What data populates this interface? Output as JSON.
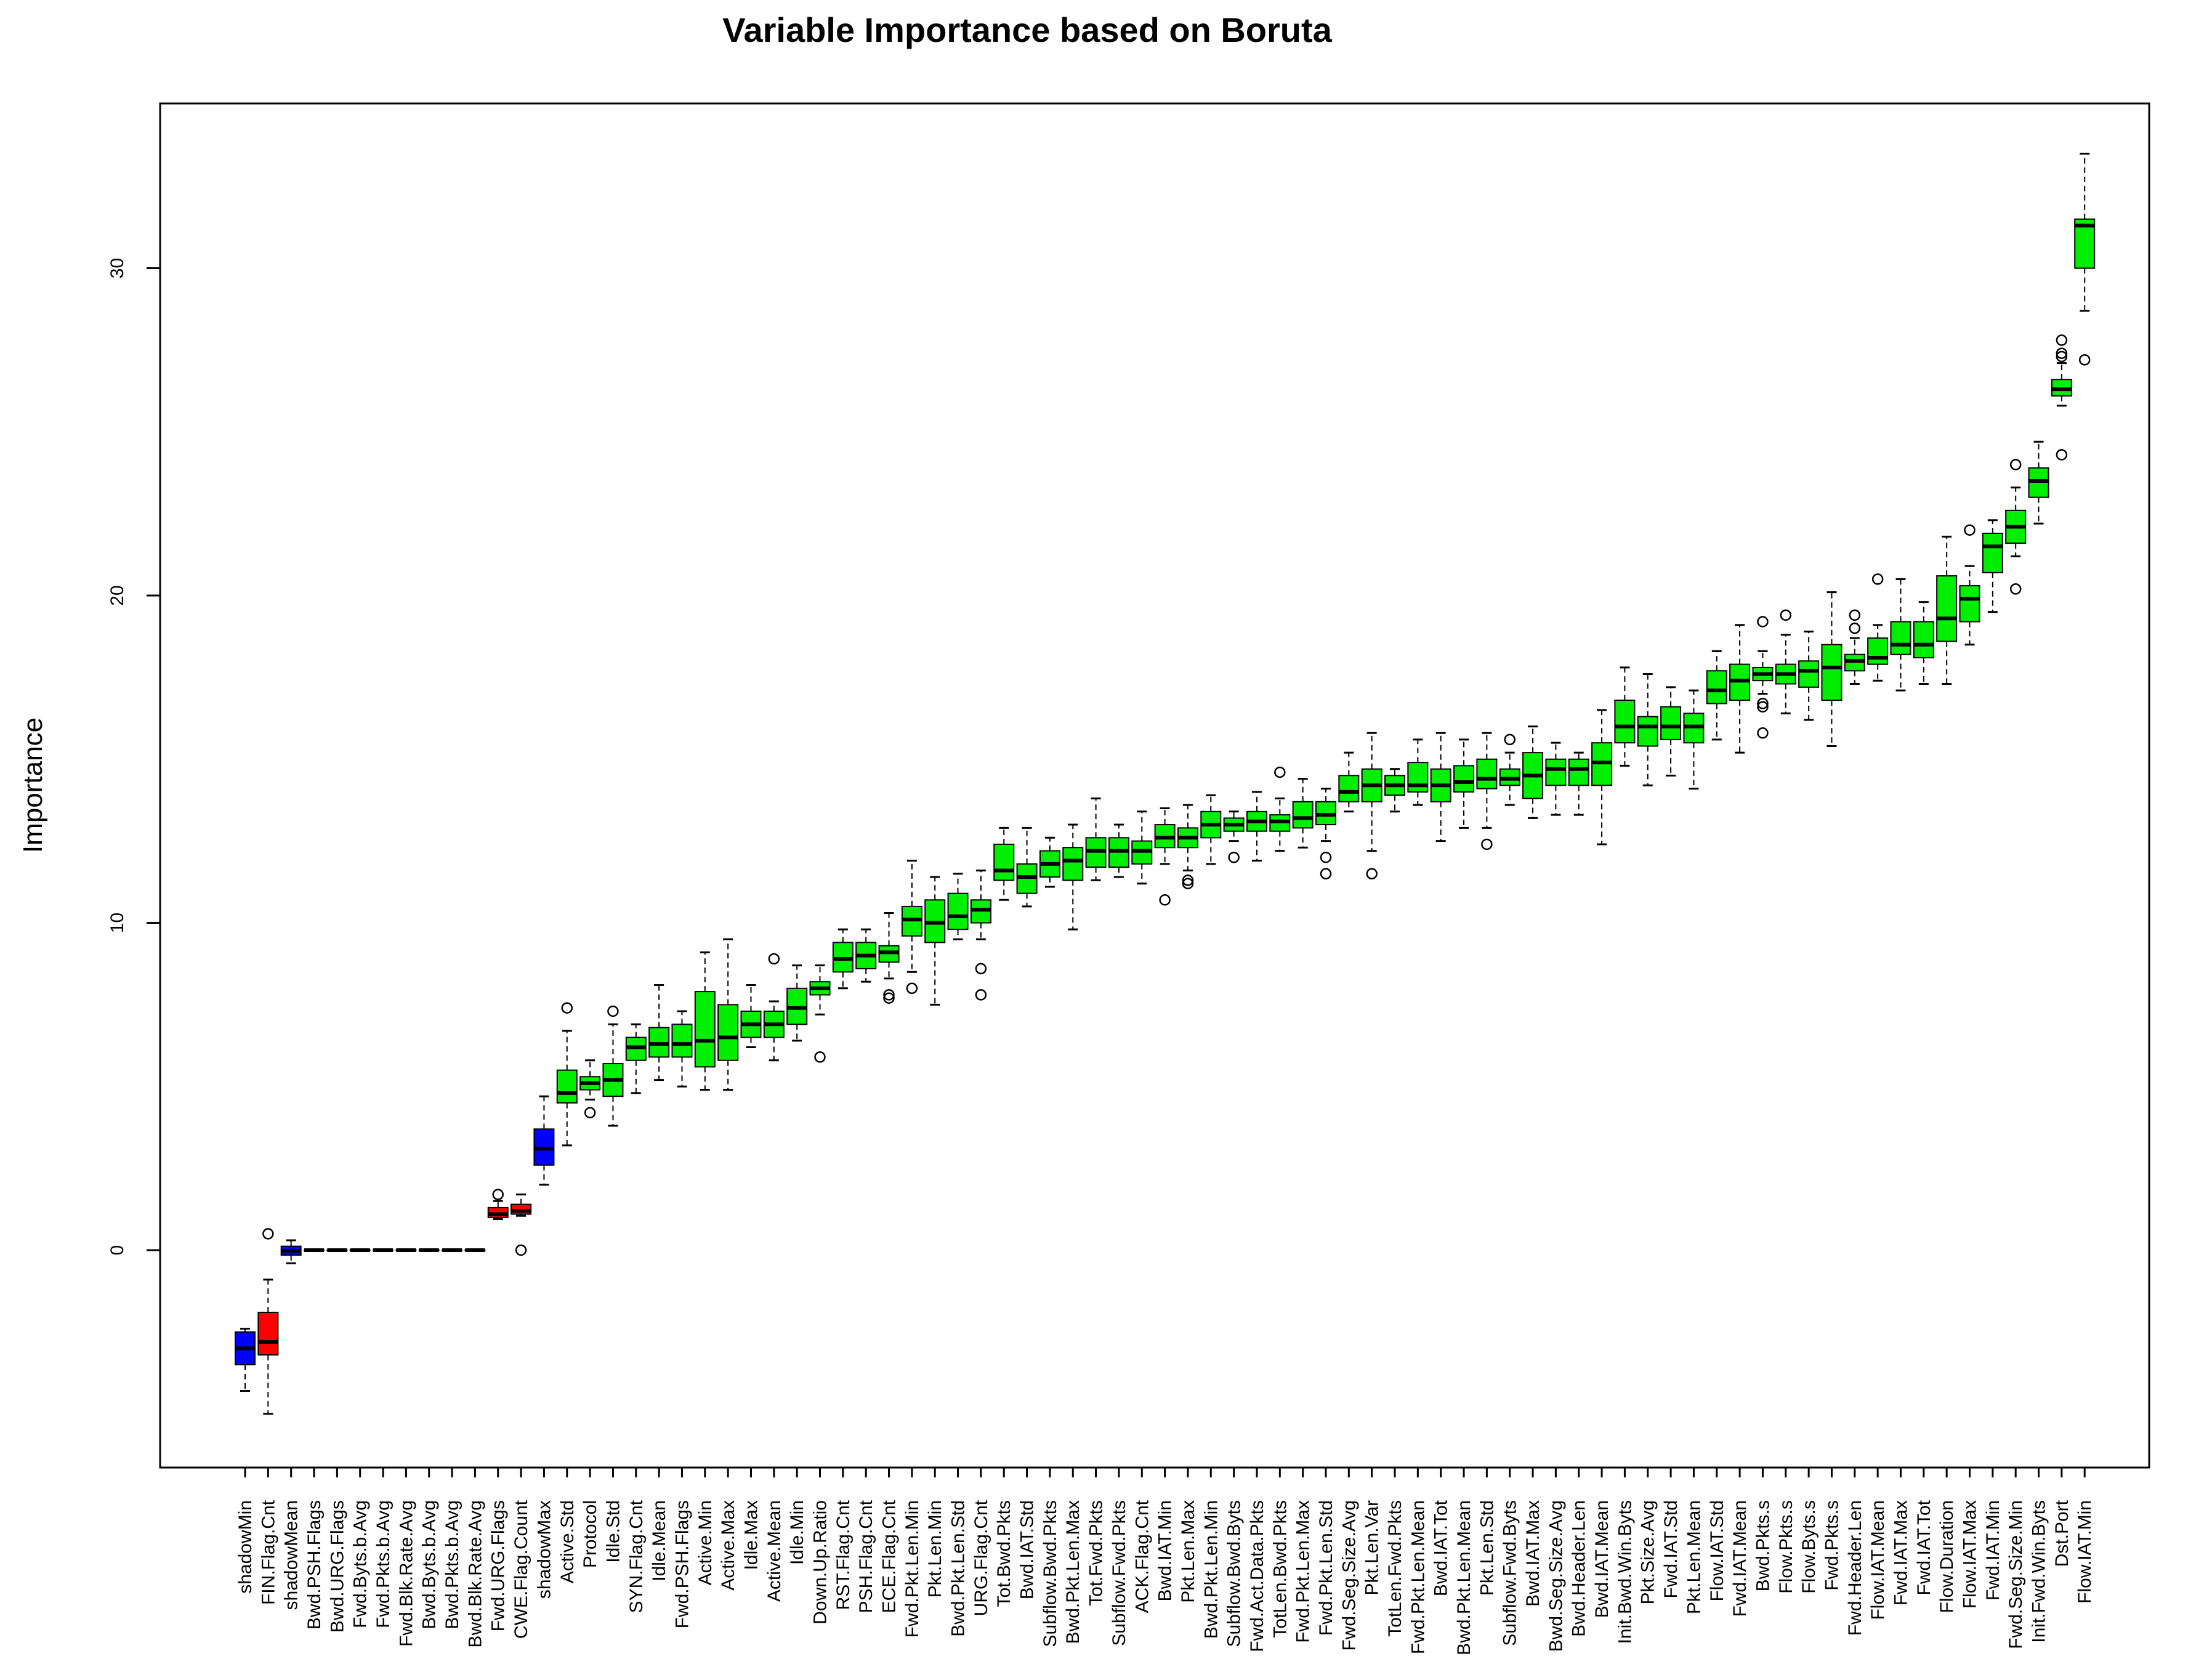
{
  "chart_data": {
    "type": "boxplot",
    "title": "Variable Importance based on Boruta",
    "xlabel": "",
    "ylabel": "Importance",
    "ylim": [
      -6.6,
      35
    ],
    "yticks": [
      0,
      10,
      20,
      30
    ],
    "grid": false,
    "legend": "none",
    "colors": {
      "shadow": "#0000ff",
      "rejected": "#ff0000",
      "confirmed": "#00ee00"
    },
    "boxes": [
      {
        "label": "shadowMin",
        "status": "shadow",
        "whisker_low": -4.3,
        "q1": -3.5,
        "median": -3.0,
        "q3": -2.5,
        "whisker_high": -2.4,
        "outliers": []
      },
      {
        "label": "FIN.Flag.Cnt",
        "status": "rejected",
        "whisker_low": -5.0,
        "q1": -3.2,
        "median": -2.8,
        "q3": -1.9,
        "whisker_high": -0.9,
        "outliers": [
          0.5
        ]
      },
      {
        "label": "shadowMean",
        "status": "shadow",
        "whisker_low": -0.4,
        "q1": -0.15,
        "median": -0.02,
        "q3": 0.12,
        "whisker_high": 0.3,
        "outliers": []
      },
      {
        "label": "Bwd.PSH.Flags",
        "status": "rejected",
        "whisker_low": 0,
        "q1": 0,
        "median": 0,
        "q3": 0,
        "whisker_high": 0,
        "outliers": []
      },
      {
        "label": "Bwd.URG.Flags",
        "status": "rejected",
        "whisker_low": 0,
        "q1": 0,
        "median": 0,
        "q3": 0,
        "whisker_high": 0,
        "outliers": []
      },
      {
        "label": "Fwd.Byts.b.Avg",
        "status": "rejected",
        "whisker_low": 0,
        "q1": 0,
        "median": 0,
        "q3": 0,
        "whisker_high": 0,
        "outliers": []
      },
      {
        "label": "Fwd.Pkts.b.Avg",
        "status": "rejected",
        "whisker_low": 0,
        "q1": 0,
        "median": 0,
        "q3": 0,
        "whisker_high": 0,
        "outliers": []
      },
      {
        "label": "Fwd.Blk.Rate.Avg",
        "status": "rejected",
        "whisker_low": 0,
        "q1": 0,
        "median": 0,
        "q3": 0,
        "whisker_high": 0,
        "outliers": []
      },
      {
        "label": "Bwd.Byts.b.Avg",
        "status": "rejected",
        "whisker_low": 0,
        "q1": 0,
        "median": 0,
        "q3": 0,
        "whisker_high": 0,
        "outliers": []
      },
      {
        "label": "Bwd.Pkts.b.Avg",
        "status": "rejected",
        "whisker_low": 0,
        "q1": 0,
        "median": 0,
        "q3": 0,
        "whisker_high": 0,
        "outliers": []
      },
      {
        "label": "Bwd.Blk.Rate.Avg",
        "status": "rejected",
        "whisker_low": 0,
        "q1": 0,
        "median": 0,
        "q3": 0,
        "whisker_high": 0,
        "outliers": []
      },
      {
        "label": "Fwd.URG.Flags",
        "status": "rejected",
        "whisker_low": 0.95,
        "q1": 1.0,
        "median": 1.1,
        "q3": 1.3,
        "whisker_high": 1.5,
        "outliers": [
          1.7
        ]
      },
      {
        "label": "CWE.Flag.Count",
        "status": "rejected",
        "whisker_low": 1.05,
        "q1": 1.1,
        "median": 1.2,
        "q3": 1.4,
        "whisker_high": 1.7,
        "outliers": [
          0.0
        ]
      },
      {
        "label": "shadowMax",
        "status": "shadow",
        "whisker_low": 2.0,
        "q1": 2.6,
        "median": 3.1,
        "q3": 3.7,
        "whisker_high": 4.7,
        "outliers": []
      },
      {
        "label": "Active.Std",
        "status": "confirmed",
        "whisker_low": 3.2,
        "q1": 4.5,
        "median": 4.8,
        "q3": 5.5,
        "whisker_high": 6.7,
        "outliers": [
          7.4
        ]
      },
      {
        "label": "Protocol",
        "status": "confirmed",
        "whisker_low": 4.6,
        "q1": 4.9,
        "median": 5.1,
        "q3": 5.3,
        "whisker_high": 5.8,
        "outliers": [
          4.2
        ]
      },
      {
        "label": "Idle.Std",
        "status": "confirmed",
        "whisker_low": 3.8,
        "q1": 4.7,
        "median": 5.2,
        "q3": 5.7,
        "whisker_high": 6.9,
        "outliers": [
          7.3
        ]
      },
      {
        "label": "SYN.Flag.Cnt",
        "status": "confirmed",
        "whisker_low": 4.8,
        "q1": 5.8,
        "median": 6.2,
        "q3": 6.5,
        "whisker_high": 6.9,
        "outliers": []
      },
      {
        "label": "Idle.Mean",
        "status": "confirmed",
        "whisker_low": 5.2,
        "q1": 5.9,
        "median": 6.3,
        "q3": 6.8,
        "whisker_high": 8.1,
        "outliers": []
      },
      {
        "label": "Fwd.PSH.Flags",
        "status": "confirmed",
        "whisker_low": 5.0,
        "q1": 5.9,
        "median": 6.3,
        "q3": 6.9,
        "whisker_high": 7.3,
        "outliers": []
      },
      {
        "label": "Active.Min",
        "status": "confirmed",
        "whisker_low": 4.9,
        "q1": 5.6,
        "median": 6.4,
        "q3": 7.9,
        "whisker_high": 9.1,
        "outliers": []
      },
      {
        "label": "Active.Max",
        "status": "confirmed",
        "whisker_low": 4.9,
        "q1": 5.8,
        "median": 6.5,
        "q3": 7.5,
        "whisker_high": 9.5,
        "outliers": []
      },
      {
        "label": "Idle.Max",
        "status": "confirmed",
        "whisker_low": 6.2,
        "q1": 6.5,
        "median": 6.9,
        "q3": 7.3,
        "whisker_high": 8.1,
        "outliers": []
      },
      {
        "label": "Active.Mean",
        "status": "confirmed",
        "whisker_low": 5.8,
        "q1": 6.5,
        "median": 6.9,
        "q3": 7.3,
        "whisker_high": 7.6,
        "outliers": [
          8.9
        ]
      },
      {
        "label": "Idle.Min",
        "status": "confirmed",
        "whisker_low": 6.4,
        "q1": 6.9,
        "median": 7.4,
        "q3": 8.0,
        "whisker_high": 8.7,
        "outliers": []
      },
      {
        "label": "Down.Up.Ratio",
        "status": "confirmed",
        "whisker_low": 7.2,
        "q1": 7.8,
        "median": 8.0,
        "q3": 8.2,
        "whisker_high": 8.7,
        "outliers": [
          5.9
        ]
      },
      {
        "label": "RST.Flag.Cnt",
        "status": "confirmed",
        "whisker_low": 8.0,
        "q1": 8.5,
        "median": 8.9,
        "q3": 9.4,
        "whisker_high": 9.8,
        "outliers": []
      },
      {
        "label": "PSH.Flag.Cnt",
        "status": "confirmed",
        "whisker_low": 8.2,
        "q1": 8.6,
        "median": 9.0,
        "q3": 9.4,
        "whisker_high": 9.8,
        "outliers": []
      },
      {
        "label": "ECE.Flag.Cnt",
        "status": "confirmed",
        "whisker_low": 8.3,
        "q1": 8.8,
        "median": 9.1,
        "q3": 9.3,
        "whisker_high": 10.3,
        "outliers": [
          7.8,
          7.7
        ]
      },
      {
        "label": "Fwd.Pkt.Len.Min",
        "status": "confirmed",
        "whisker_low": 8.5,
        "q1": 9.6,
        "median": 10.1,
        "q3": 10.5,
        "whisker_high": 11.9,
        "outliers": [
          8.0
        ]
      },
      {
        "label": "Pkt.Len.Min",
        "status": "confirmed",
        "whisker_low": 7.5,
        "q1": 9.4,
        "median": 10.0,
        "q3": 10.7,
        "whisker_high": 11.4,
        "outliers": []
      },
      {
        "label": "Bwd.Pkt.Len.Std",
        "status": "confirmed",
        "whisker_low": 9.5,
        "q1": 9.8,
        "median": 10.2,
        "q3": 10.9,
        "whisker_high": 11.5,
        "outliers": []
      },
      {
        "label": "URG.Flag.Cnt",
        "status": "confirmed",
        "whisker_low": 9.5,
        "q1": 10.0,
        "median": 10.4,
        "q3": 10.7,
        "whisker_high": 11.6,
        "outliers": [
          8.6,
          7.8
        ]
      },
      {
        "label": "Tot.Bwd.Pkts",
        "status": "confirmed",
        "whisker_low": 10.7,
        "q1": 11.3,
        "median": 11.6,
        "q3": 12.4,
        "whisker_high": 12.9,
        "outliers": []
      },
      {
        "label": "Bwd.IAT.Std",
        "status": "confirmed",
        "whisker_low": 10.5,
        "q1": 10.9,
        "median": 11.4,
        "q3": 11.8,
        "whisker_high": 12.9,
        "outliers": []
      },
      {
        "label": "Subflow.Bwd.Pkts",
        "status": "confirmed",
        "whisker_low": 11.1,
        "q1": 11.4,
        "median": 11.8,
        "q3": 12.2,
        "whisker_high": 12.6,
        "outliers": []
      },
      {
        "label": "Bwd.Pkt.Len.Max",
        "status": "confirmed",
        "whisker_low": 9.8,
        "q1": 11.3,
        "median": 11.9,
        "q3": 12.3,
        "whisker_high": 13.0,
        "outliers": []
      },
      {
        "label": "Tot.Fwd.Pkts",
        "status": "confirmed",
        "whisker_low": 11.3,
        "q1": 11.7,
        "median": 12.2,
        "q3": 12.6,
        "whisker_high": 13.8,
        "outliers": []
      },
      {
        "label": "Subflow.Fwd.Pkts",
        "status": "confirmed",
        "whisker_low": 11.4,
        "q1": 11.7,
        "median": 12.2,
        "q3": 12.6,
        "whisker_high": 13.0,
        "outliers": []
      },
      {
        "label": "ACK.Flag.Cnt",
        "status": "confirmed",
        "whisker_low": 11.2,
        "q1": 11.8,
        "median": 12.2,
        "q3": 12.5,
        "whisker_high": 13.4,
        "outliers": []
      },
      {
        "label": "Bwd.IAT.Min",
        "status": "confirmed",
        "whisker_low": 11.8,
        "q1": 12.3,
        "median": 12.6,
        "q3": 13.0,
        "whisker_high": 13.5,
        "outliers": [
          10.7
        ]
      },
      {
        "label": "Pkt.Len.Max",
        "status": "confirmed",
        "whisker_low": 11.6,
        "q1": 12.3,
        "median": 12.6,
        "q3": 12.9,
        "whisker_high": 13.6,
        "outliers": [
          11.2,
          11.3
        ]
      },
      {
        "label": "Bwd.Pkt.Len.Min",
        "status": "confirmed",
        "whisker_low": 11.8,
        "q1": 12.6,
        "median": 13.0,
        "q3": 13.4,
        "whisker_high": 13.9,
        "outliers": []
      },
      {
        "label": "Subflow.Bwd.Byts",
        "status": "confirmed",
        "whisker_low": 12.5,
        "q1": 12.8,
        "median": 13.0,
        "q3": 13.2,
        "whisker_high": 13.4,
        "outliers": [
          12.0
        ]
      },
      {
        "label": "Fwd.Act.Data.Pkts",
        "status": "confirmed",
        "whisker_low": 11.9,
        "q1": 12.8,
        "median": 13.1,
        "q3": 13.4,
        "whisker_high": 14.0,
        "outliers": []
      },
      {
        "label": "TotLen.Bwd.Pkts",
        "status": "confirmed",
        "whisker_low": 12.2,
        "q1": 12.8,
        "median": 13.1,
        "q3": 13.3,
        "whisker_high": 13.8,
        "outliers": [
          14.6
        ]
      },
      {
        "label": "Fwd.Pkt.Len.Max",
        "status": "confirmed",
        "whisker_low": 12.3,
        "q1": 12.9,
        "median": 13.2,
        "q3": 13.7,
        "whisker_high": 14.4,
        "outliers": []
      },
      {
        "label": "Fwd.Pkt.Len.Std",
        "status": "confirmed",
        "whisker_low": 12.5,
        "q1": 13.0,
        "median": 13.3,
        "q3": 13.7,
        "whisker_high": 14.1,
        "outliers": [
          12.0,
          11.5
        ]
      },
      {
        "label": "Fwd.Seg.Size.Avg",
        "status": "confirmed",
        "whisker_low": 13.4,
        "q1": 13.7,
        "median": 14.0,
        "q3": 14.5,
        "whisker_high": 15.2,
        "outliers": []
      },
      {
        "label": "Pkt.Len.Var",
        "status": "confirmed",
        "whisker_low": 12.2,
        "q1": 13.7,
        "median": 14.2,
        "q3": 14.7,
        "whisker_high": 15.8,
        "outliers": [
          11.5
        ]
      },
      {
        "label": "TotLen.Fwd.Pkts",
        "status": "confirmed",
        "whisker_low": 13.4,
        "q1": 13.9,
        "median": 14.2,
        "q3": 14.5,
        "whisker_high": 14.7,
        "outliers": []
      },
      {
        "label": "Fwd.Pkt.Len.Mean",
        "status": "confirmed",
        "whisker_low": 13.6,
        "q1": 14.0,
        "median": 14.2,
        "q3": 14.9,
        "whisker_high": 15.6,
        "outliers": []
      },
      {
        "label": "Bwd.IAT.Tot",
        "status": "confirmed",
        "whisker_low": 12.5,
        "q1": 13.7,
        "median": 14.2,
        "q3": 14.7,
        "whisker_high": 15.8,
        "outliers": []
      },
      {
        "label": "Bwd.Pkt.Len.Mean",
        "status": "confirmed",
        "whisker_low": 12.9,
        "q1": 14.0,
        "median": 14.3,
        "q3": 14.8,
        "whisker_high": 15.6,
        "outliers": []
      },
      {
        "label": "Pkt.Len.Std",
        "status": "confirmed",
        "whisker_low": 12.9,
        "q1": 14.1,
        "median": 14.4,
        "q3": 15.0,
        "whisker_high": 15.8,
        "outliers": [
          12.4
        ]
      },
      {
        "label": "Subflow.Fwd.Byts",
        "status": "confirmed",
        "whisker_low": 13.6,
        "q1": 14.2,
        "median": 14.4,
        "q3": 14.7,
        "whisker_high": 15.2,
        "outliers": [
          15.6
        ]
      },
      {
        "label": "Bwd.IAT.Max",
        "status": "confirmed",
        "whisker_low": 13.2,
        "q1": 13.8,
        "median": 14.5,
        "q3": 15.2,
        "whisker_high": 16.0,
        "outliers": []
      },
      {
        "label": "Bwd.Seg.Size.Avg",
        "status": "confirmed",
        "whisker_low": 13.3,
        "q1": 14.2,
        "median": 14.7,
        "q3": 15.0,
        "whisker_high": 15.5,
        "outliers": []
      },
      {
        "label": "Bwd.Header.Len",
        "status": "confirmed",
        "whisker_low": 13.3,
        "q1": 14.2,
        "median": 14.7,
        "q3": 15.0,
        "whisker_high": 15.2,
        "outliers": []
      },
      {
        "label": "Bwd.IAT.Mean",
        "status": "confirmed",
        "whisker_low": 12.4,
        "q1": 14.2,
        "median": 14.9,
        "q3": 15.5,
        "whisker_high": 16.5,
        "outliers": []
      },
      {
        "label": "Init.Bwd.Win.Byts",
        "status": "confirmed",
        "whisker_low": 14.8,
        "q1": 15.5,
        "median": 16.0,
        "q3": 16.8,
        "whisker_high": 17.8,
        "outliers": []
      },
      {
        "label": "Pkt.Size.Avg",
        "status": "confirmed",
        "whisker_low": 14.2,
        "q1": 15.4,
        "median": 16.0,
        "q3": 16.3,
        "whisker_high": 17.6,
        "outliers": []
      },
      {
        "label": "Fwd.IAT.Std",
        "status": "confirmed",
        "whisker_low": 14.5,
        "q1": 15.6,
        "median": 16.0,
        "q3": 16.6,
        "whisker_high": 17.2,
        "outliers": []
      },
      {
        "label": "Pkt.Len.Mean",
        "status": "confirmed",
        "whisker_low": 14.1,
        "q1": 15.5,
        "median": 16.0,
        "q3": 16.4,
        "whisker_high": 17.1,
        "outliers": []
      },
      {
        "label": "Flow.IAT.Std",
        "status": "confirmed",
        "whisker_low": 15.6,
        "q1": 16.7,
        "median": 17.1,
        "q3": 17.7,
        "whisker_high": 18.3,
        "outliers": []
      },
      {
        "label": "Fwd.IAT.Mean",
        "status": "confirmed",
        "whisker_low": 15.2,
        "q1": 16.8,
        "median": 17.4,
        "q3": 17.9,
        "whisker_high": 19.1,
        "outliers": []
      },
      {
        "label": "Bwd.Pkts.s",
        "status": "confirmed",
        "whisker_low": 17.0,
        "q1": 17.4,
        "median": 17.6,
        "q3": 17.8,
        "whisker_high": 18.3,
        "outliers": [
          19.2,
          16.7,
          16.6,
          15.8
        ]
      },
      {
        "label": "Flow.Pkts.s",
        "status": "confirmed",
        "whisker_low": 16.4,
        "q1": 17.3,
        "median": 17.6,
        "q3": 17.9,
        "whisker_high": 18.8,
        "outliers": [
          19.4
        ]
      },
      {
        "label": "Flow.Byts.s",
        "status": "confirmed",
        "whisker_low": 16.2,
        "q1": 17.2,
        "median": 17.7,
        "q3": 18.0,
        "whisker_high": 18.9,
        "outliers": []
      },
      {
        "label": "Fwd.Pkts.s",
        "status": "confirmed",
        "whisker_low": 15.4,
        "q1": 16.8,
        "median": 17.8,
        "q3": 18.5,
        "whisker_high": 20.1,
        "outliers": []
      },
      {
        "label": "Fwd.Header.Len",
        "status": "confirmed",
        "whisker_low": 17.3,
        "q1": 17.7,
        "median": 18.0,
        "q3": 18.2,
        "whisker_high": 18.7,
        "outliers": [
          19.4,
          19.0
        ]
      },
      {
        "label": "Flow.IAT.Mean",
        "status": "confirmed",
        "whisker_low": 17.4,
        "q1": 17.9,
        "median": 18.1,
        "q3": 18.7,
        "whisker_high": 19.1,
        "outliers": [
          20.5
        ]
      },
      {
        "label": "Fwd.IAT.Max",
        "status": "confirmed",
        "whisker_low": 17.1,
        "q1": 18.2,
        "median": 18.5,
        "q3": 19.2,
        "whisker_high": 20.5,
        "outliers": []
      },
      {
        "label": "Fwd.IAT.Tot",
        "status": "confirmed",
        "whisker_low": 17.3,
        "q1": 18.1,
        "median": 18.5,
        "q3": 19.2,
        "whisker_high": 19.8,
        "outliers": []
      },
      {
        "label": "Flow.Duration",
        "status": "confirmed",
        "whisker_low": 17.3,
        "q1": 18.6,
        "median": 19.3,
        "q3": 20.6,
        "whisker_high": 21.8,
        "outliers": []
      },
      {
        "label": "Flow.IAT.Max",
        "status": "confirmed",
        "whisker_low": 18.5,
        "q1": 19.2,
        "median": 19.9,
        "q3": 20.3,
        "whisker_high": 20.9,
        "outliers": [
          22.0
        ]
      },
      {
        "label": "Fwd.IAT.Min",
        "status": "confirmed",
        "whisker_low": 19.5,
        "q1": 20.7,
        "median": 21.5,
        "q3": 21.9,
        "whisker_high": 22.3,
        "outliers": []
      },
      {
        "label": "Fwd.Seg.Size.Min",
        "status": "confirmed",
        "whisker_low": 21.2,
        "q1": 21.6,
        "median": 22.1,
        "q3": 22.6,
        "whisker_high": 23.3,
        "outliers": [
          24.0,
          20.2
        ]
      },
      {
        "label": "Init.Fwd.Win.Byts",
        "status": "confirmed",
        "whisker_low": 22.2,
        "q1": 23.0,
        "median": 23.5,
        "q3": 23.9,
        "whisker_high": 24.7,
        "outliers": []
      },
      {
        "label": "Dst.Port",
        "status": "confirmed",
        "whisker_low": 25.8,
        "q1": 26.1,
        "median": 26.3,
        "q3": 26.6,
        "whisker_high": 27.1,
        "outliers": [
          27.8,
          27.4,
          27.3,
          24.3
        ]
      },
      {
        "label": "Flow.IAT.Min",
        "status": "confirmed",
        "whisker_low": 28.7,
        "q1": 30.0,
        "median": 31.3,
        "q3": 31.5,
        "whisker_high": 33.5,
        "outliers": [
          27.2
        ]
      }
    ]
  }
}
